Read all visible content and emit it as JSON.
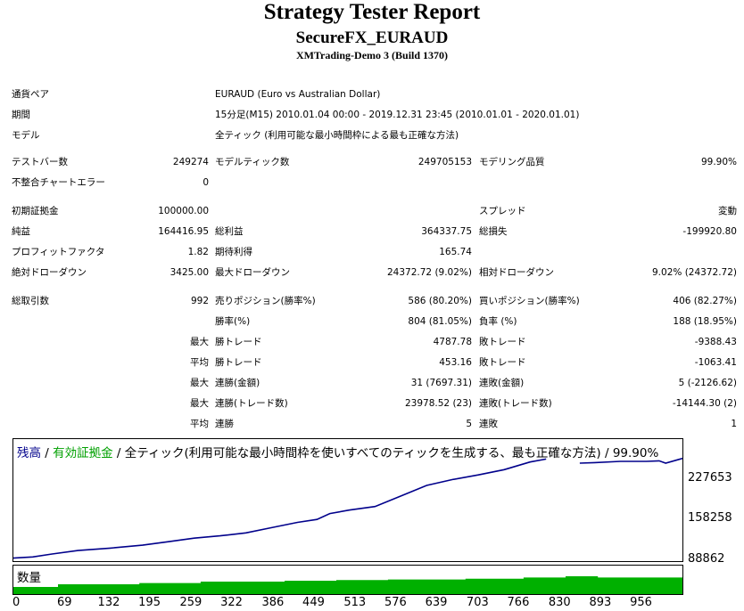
{
  "header": {
    "title": "Strategy Tester Report",
    "subtitle": "SecureFX_EURAUD",
    "server": "XMTrading-Demo 3 (Build 1370)"
  },
  "info": {
    "pair_label": "通貨ペア",
    "pair_value": "EURAUD (Euro vs Australian Dollar)",
    "period_label": "期間",
    "period_value": "15分足(M15) 2010.01.04 00:00 - 2019.12.31 23:45 (2010.01.01 - 2020.01.01)",
    "model_label": "モデル",
    "model_value": "全ティック (利用可能な最小時間枠による最も正確な方法)"
  },
  "stats": {
    "bars_label": "テストバー数",
    "bars_value": "249274",
    "ticks_label": "モデルティック数",
    "ticks_value": "249705153",
    "quality_label": "モデリング品質",
    "quality_value": "99.90%",
    "errors_label": "不整合チャートエラー",
    "errors_value": "0",
    "deposit_label": "初期証拠金",
    "deposit_value": "100000.00",
    "spread_label": "スプレッド",
    "spread_value": "変動",
    "net_label": "純益",
    "net_value": "164416.95",
    "gross_profit_label": "総利益",
    "gross_profit_value": "364337.75",
    "gross_loss_label": "総損失",
    "gross_loss_value": "-199920.80",
    "pf_label": "プロフィットファクタ",
    "pf_value": "1.82",
    "expected_label": "期待利得",
    "expected_value": "165.74",
    "abs_dd_label": "絶対ドローダウン",
    "abs_dd_value": "3425.00",
    "max_dd_label": "最大ドローダウン",
    "max_dd_value": "24372.72 (9.02%)",
    "rel_dd_label": "相対ドローダウン",
    "rel_dd_value": "9.02% (24372.72)",
    "trades_label": "総取引数",
    "trades_value": "992",
    "short_label": "売りポジション(勝率%)",
    "short_value": "586 (80.20%)",
    "long_label": "買いポジション(勝率%)",
    "long_value": "406 (82.27%)",
    "winrate_label": "勝率(%)",
    "winrate_value": "804 (81.05%)",
    "lossrate_label": "負率 (%)",
    "lossrate_value": "188 (18.95%)",
    "max_prefix": "最大",
    "avg_prefix": "平均",
    "largest_win_label": "勝トレード",
    "largest_win_value": "4787.78",
    "largest_loss_label": "敗トレード",
    "largest_loss_value": "-9388.43",
    "avg_win_label": "勝トレード",
    "avg_win_value": "453.16",
    "avg_loss_label": "敗トレード",
    "avg_loss_value": "-1063.41",
    "max_cons_wins_label": "連勝(金額)",
    "max_cons_wins_value": "31 (7697.31)",
    "max_cons_losses_label": "連敗(金額)",
    "max_cons_losses_value": "5 (-2126.62)",
    "max_cons_profit_label": "連勝(トレード数)",
    "max_cons_profit_value": "23978.52 (23)",
    "max_cons_loss_label": "連敗(トレード数)",
    "max_cons_loss_value": "-14144.30 (2)",
    "avg_cons_wins_label": "連勝",
    "avg_cons_wins_value": "5",
    "avg_cons_losses_label": "連敗",
    "avg_cons_losses_value": "1"
  },
  "chart_legend": {
    "balance": "残高",
    "sep1": " / ",
    "equity": "有効証拠金",
    "rest": " / 全ティック(利用可能な最小時間枠を使いすべてのティックを生成する、最も正確な方法) / 99.90%",
    "volume_label": "数量"
  },
  "colors": {
    "balance": "#00008B",
    "equity": "#00A000",
    "volume": "#00B000"
  },
  "chart_data": {
    "type": "line",
    "series": [
      {
        "name": "残高"
      }
    ],
    "y_ticks": [
      88862,
      158258,
      227653
    ],
    "x_ticks": [
      0,
      69,
      132,
      195,
      259,
      322,
      386,
      449,
      513,
      576,
      639,
      703,
      766,
      830,
      893,
      956
    ],
    "ylim": [
      88862,
      297048
    ],
    "xlim": [
      0,
      1036
    ],
    "gap": [
      825,
      877
    ],
    "points": [
      [
        0,
        94000
      ],
      [
        30,
        96000
      ],
      [
        60,
        101000
      ],
      [
        100,
        107000
      ],
      [
        150,
        111000
      ],
      [
        200,
        116000
      ],
      [
        240,
        122000
      ],
      [
        280,
        128000
      ],
      [
        320,
        132000
      ],
      [
        360,
        137000
      ],
      [
        400,
        146000
      ],
      [
        440,
        155000
      ],
      [
        470,
        160000
      ],
      [
        490,
        170000
      ],
      [
        520,
        176000
      ],
      [
        560,
        182000
      ],
      [
        600,
        200000
      ],
      [
        640,
        218000
      ],
      [
        680,
        228000
      ],
      [
        720,
        236000
      ],
      [
        760,
        245000
      ],
      [
        800,
        258000
      ],
      [
        825,
        263000
      ],
      [
        877,
        256000
      ],
      [
        900,
        257000
      ],
      [
        940,
        259000
      ],
      [
        980,
        259000
      ],
      [
        1000,
        260000
      ],
      [
        1010,
        256000
      ],
      [
        1036,
        264000
      ]
    ],
    "volume": [
      [
        0,
        0.4
      ],
      [
        69,
        0.55
      ],
      [
        195,
        0.62
      ],
      [
        290,
        0.7
      ],
      [
        420,
        0.75
      ],
      [
        500,
        0.79
      ],
      [
        580,
        0.82
      ],
      [
        700,
        0.86
      ],
      [
        790,
        0.93
      ],
      [
        855,
        1.0
      ],
      [
        905,
        0.93
      ],
      [
        1036,
        0.93
      ]
    ]
  }
}
